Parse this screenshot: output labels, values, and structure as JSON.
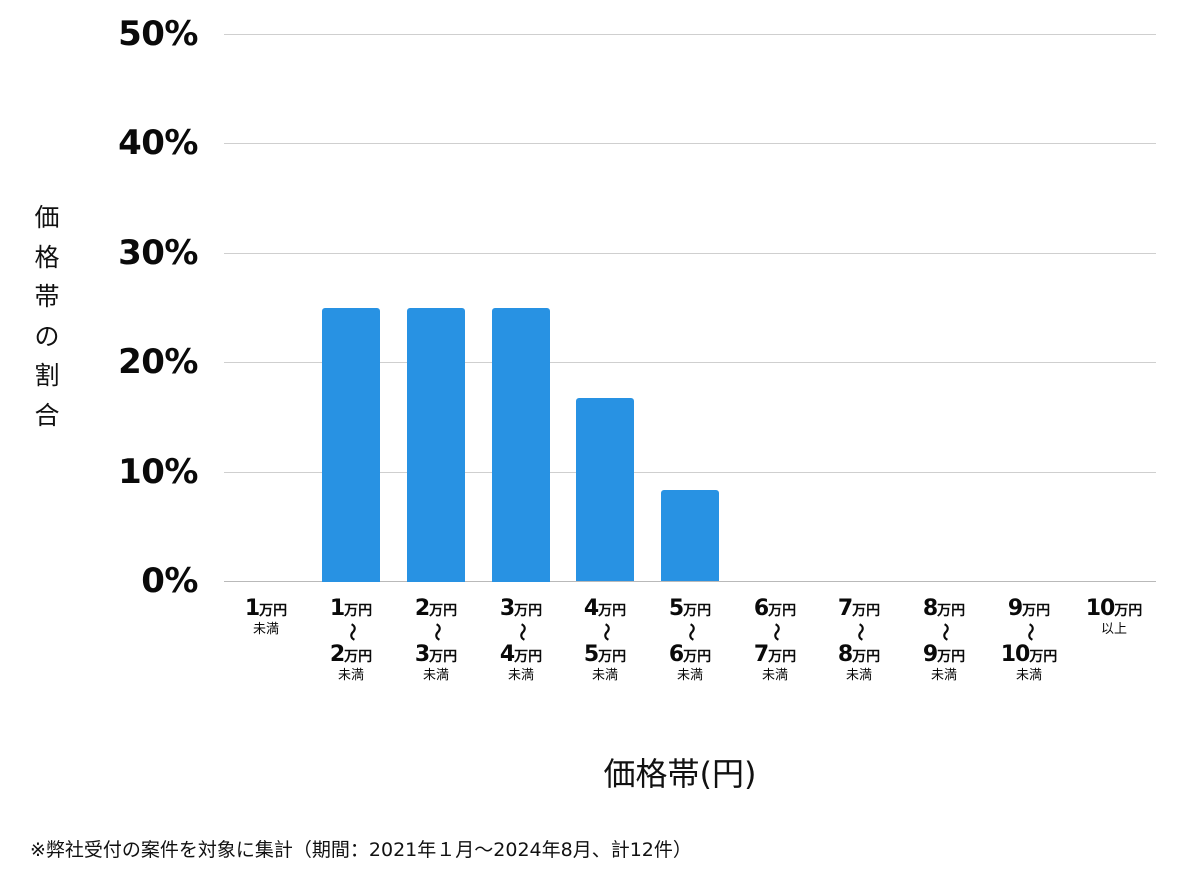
{
  "chart_data": {
    "type": "bar",
    "title": "",
    "xlabel": "価格帯(円)",
    "ylabel": "価格帯の割合",
    "ylim": [
      0,
      50
    ],
    "yticks": [
      "0%",
      "10%",
      "20%",
      "30%",
      "40%",
      "50%"
    ],
    "grid": true,
    "legend": null,
    "bar_color": "#2892e3",
    "categories": [
      "1万円未満",
      "1万円〜2万円未満",
      "2万円〜3万円未満",
      "3万円〜4万円未満",
      "4万円〜5万円未満",
      "5万円〜6万円未満",
      "6万円〜7万円未満",
      "7万円〜8万円未満",
      "8万円〜9万円未満",
      "9万円〜10万円未満",
      "10万円以上"
    ],
    "values": [
      0,
      25,
      25,
      25,
      16.7,
      8.3,
      0,
      0,
      0,
      0,
      0
    ],
    "unit": "%"
  },
  "axis": {
    "y_title_chars": [
      "価",
      "格",
      "帯",
      "の",
      "割",
      "合"
    ],
    "x_title": "価格帯(円)"
  },
  "xlabels": [
    {
      "from": "1",
      "unit": "万円",
      "sub": "未満",
      "range": false
    },
    {
      "from": "1",
      "to": "2",
      "unit": "万円",
      "tilde": "〜",
      "sub": "未満",
      "range": true
    },
    {
      "from": "2",
      "to": "3",
      "unit": "万円",
      "tilde": "〜",
      "sub": "未満",
      "range": true
    },
    {
      "from": "3",
      "to": "4",
      "unit": "万円",
      "tilde": "〜",
      "sub": "未満",
      "range": true
    },
    {
      "from": "4",
      "to": "5",
      "unit": "万円",
      "tilde": "〜",
      "sub": "未満",
      "range": true
    },
    {
      "from": "5",
      "to": "6",
      "unit": "万円",
      "tilde": "〜",
      "sub": "未満",
      "range": true
    },
    {
      "from": "6",
      "to": "7",
      "unit": "万円",
      "tilde": "〜",
      "sub": "未満",
      "range": true
    },
    {
      "from": "7",
      "to": "8",
      "unit": "万円",
      "tilde": "〜",
      "sub": "未満",
      "range": true
    },
    {
      "from": "8",
      "to": "9",
      "unit": "万円",
      "tilde": "〜",
      "sub": "未満",
      "range": true
    },
    {
      "from": "9",
      "to": "10",
      "unit": "万円",
      "tilde": "〜",
      "sub": "未満",
      "range": true
    },
    {
      "from": "10",
      "unit": "万円",
      "sub": "以上",
      "range": false
    }
  ],
  "footnote": "※弊社受付の案件を対象に集計（期間：2021年１月〜2024年8月、計12件）"
}
